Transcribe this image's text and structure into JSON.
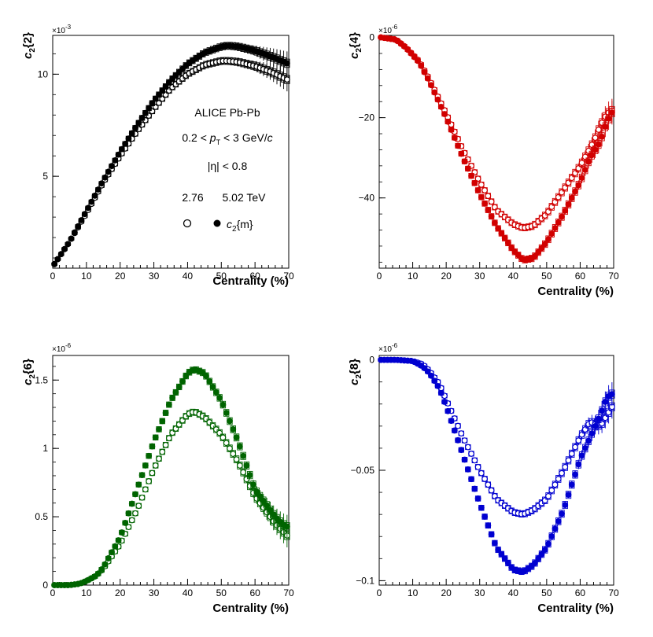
{
  "chart_data": [
    {
      "id": "c22",
      "type": "scatter",
      "ylabel_main": "c",
      "ylabel_sub": "2",
      "ylabel_tail": "{2}",
      "xlabel": "Centrality (%)",
      "multiplier_base": "×10",
      "multiplier_exp": "-3",
      "color": "#000000",
      "xlim": [
        0,
        70
      ],
      "ylim": [
        0.5,
        11.9
      ],
      "xticks": [
        0,
        10,
        20,
        30,
        40,
        50,
        60,
        70
      ],
      "yticks": [
        5,
        10
      ],
      "ytick_labels": [
        "5",
        "10"
      ],
      "series": [
        {
          "name": "2.76 TeV",
          "marker": "open",
          "x": [
            0.5,
            5,
            10,
            15,
            20,
            25,
            30,
            35,
            40,
            45,
            50,
            52,
            55,
            60,
            65,
            70
          ],
          "y": [
            0.7,
            1.8,
            3.2,
            4.7,
            6.0,
            7.2,
            8.3,
            9.3,
            10.0,
            10.45,
            10.65,
            10.65,
            10.6,
            10.4,
            10.1,
            9.7
          ]
        },
        {
          "name": "5.02 TeV",
          "marker": "filled",
          "x": [
            0.5,
            5,
            10,
            15,
            20,
            25,
            30,
            35,
            40,
            45,
            50,
            52,
            55,
            60,
            65,
            70
          ],
          "y": [
            0.7,
            1.8,
            3.3,
            4.8,
            6.2,
            7.5,
            8.7,
            9.7,
            10.5,
            11.05,
            11.35,
            11.4,
            11.35,
            11.15,
            10.85,
            10.5
          ]
        }
      ],
      "legend": {
        "system": "ALICE Pb-Pb",
        "pt_prefix": "0.2 <",
        "pt_var": "p",
        "pt_sub": "T",
        "pt_mid": "< 3 GeV/",
        "pt_unit": "c",
        "eta": "|η| < 0.8",
        "energy_1": "2.76",
        "energy_2": "5.02 TeV",
        "entry_main": "c",
        "entry_sub": "2",
        "entry_tail": "{m}"
      }
    },
    {
      "id": "c24",
      "type": "scatter",
      "ylabel_main": "c",
      "ylabel_sub": "2",
      "ylabel_tail": "{4}",
      "xlabel": "Centrality (%)",
      "multiplier_base": "×10",
      "multiplier_exp": "-6",
      "color": "#d10000",
      "xlim": [
        0,
        70
      ],
      "ylim": [
        -57.5,
        0.5
      ],
      "xticks": [
        0,
        10,
        20,
        30,
        40,
        50,
        60,
        70
      ],
      "yticks": [
        0,
        -20,
        -40
      ],
      "ytick_labels": [
        "0",
        "−20",
        "−40"
      ],
      "series": [
        {
          "name": "2.76 TeV",
          "marker": "open",
          "x": [
            0.5,
            5,
            8,
            12,
            15,
            20,
            25,
            30,
            35,
            40,
            43,
            46,
            50,
            55,
            60,
            64,
            66,
            68,
            70
          ],
          "y": [
            0,
            -0.5,
            -2.5,
            -6,
            -10.5,
            -19,
            -28,
            -36,
            -43,
            -46.5,
            -47.5,
            -47,
            -44,
            -38,
            -32,
            -26,
            -22,
            -19,
            -18
          ]
        },
        {
          "name": "5.02 TeV",
          "marker": "filled",
          "x": [
            0.5,
            5,
            8,
            12,
            15,
            20,
            25,
            30,
            35,
            40,
            43,
            46,
            50,
            55,
            60,
            63,
            66,
            68,
            70
          ],
          "y": [
            0,
            -0.6,
            -2.6,
            -6.3,
            -11,
            -20,
            -30,
            -39,
            -47,
            -53,
            -55.5,
            -55,
            -51,
            -44,
            -36,
            -30,
            -26,
            -21,
            -18
          ]
        }
      ]
    },
    {
      "id": "c26",
      "type": "scatter",
      "ylabel_main": "c",
      "ylabel_sub": "2",
      "ylabel_tail": "{6}",
      "xlabel": "Centrality (%)",
      "multiplier_base": "×10",
      "multiplier_exp": "-6",
      "color": "#006400",
      "xlim": [
        0,
        70
      ],
      "ylim": [
        0,
        1.68
      ],
      "xticks": [
        0,
        10,
        20,
        30,
        40,
        50,
        60,
        70
      ],
      "yticks": [
        0,
        0.5,
        1,
        1.5
      ],
      "ytick_labels": [
        "0",
        "0.5",
        "1",
        "1.5"
      ],
      "series": [
        {
          "name": "2.76 TeV",
          "marker": "open",
          "x": [
            0.5,
            5,
            8,
            10,
            13,
            15,
            20,
            25,
            30,
            35,
            40,
            42,
            45,
            50,
            55,
            60,
            63,
            66,
            68,
            70
          ],
          "y": [
            0,
            0,
            0.01,
            0.03,
            0.07,
            0.12,
            0.3,
            0.55,
            0.85,
            1.1,
            1.25,
            1.27,
            1.23,
            1.1,
            0.9,
            0.65,
            0.55,
            0.45,
            0.4,
            0.35
          ]
        },
        {
          "name": "5.02 TeV",
          "marker": "filled",
          "x": [
            0.5,
            5,
            8,
            10,
            13,
            15,
            20,
            25,
            30,
            35,
            40,
            42,
            45,
            50,
            55,
            60,
            63,
            66,
            68,
            70
          ],
          "y": [
            0,
            0,
            0.01,
            0.03,
            0.07,
            0.13,
            0.35,
            0.7,
            1.05,
            1.35,
            1.55,
            1.58,
            1.55,
            1.35,
            1.05,
            0.7,
            0.6,
            0.5,
            0.45,
            0.42
          ]
        }
      ]
    },
    {
      "id": "c28",
      "type": "scatter",
      "ylabel_main": "c",
      "ylabel_sub": "2",
      "ylabel_tail": "{8}",
      "xlabel": "Centrality (%)",
      "multiplier_base": "×10",
      "multiplier_exp": "-6",
      "color": "#0000d0",
      "xlim": [
        0,
        70
      ],
      "ylim": [
        -0.102,
        0.002
      ],
      "xticks": [
        0,
        10,
        20,
        30,
        40,
        50,
        60,
        70
      ],
      "yticks": [
        0,
        -0.05,
        -0.1
      ],
      "ytick_labels": [
        "0",
        "−0.05",
        "−0.1"
      ],
      "series": [
        {
          "name": "2.76 TeV",
          "marker": "open",
          "x": [
            0.5,
            5,
            10,
            13,
            15,
            18,
            20,
            25,
            30,
            35,
            40,
            43,
            46,
            50,
            55,
            60,
            63,
            66,
            68,
            70
          ],
          "y": [
            0,
            0,
            -0.0005,
            -0.002,
            -0.005,
            -0.011,
            -0.018,
            -0.035,
            -0.05,
            -0.063,
            -0.069,
            -0.07,
            -0.068,
            -0.063,
            -0.05,
            -0.035,
            -0.028,
            -0.03,
            -0.025,
            -0.02
          ]
        },
        {
          "name": "5.02 TeV",
          "marker": "filled",
          "x": [
            0.5,
            5,
            10,
            13,
            15,
            18,
            20,
            25,
            30,
            35,
            40,
            43,
            46,
            50,
            55,
            60,
            63,
            66,
            68,
            70
          ],
          "y": [
            0,
            0,
            -0.0005,
            -0.003,
            -0.006,
            -0.013,
            -0.021,
            -0.043,
            -0.065,
            -0.085,
            -0.095,
            -0.096,
            -0.093,
            -0.085,
            -0.068,
            -0.045,
            -0.035,
            -0.025,
            -0.017,
            -0.015
          ]
        }
      ]
    }
  ]
}
